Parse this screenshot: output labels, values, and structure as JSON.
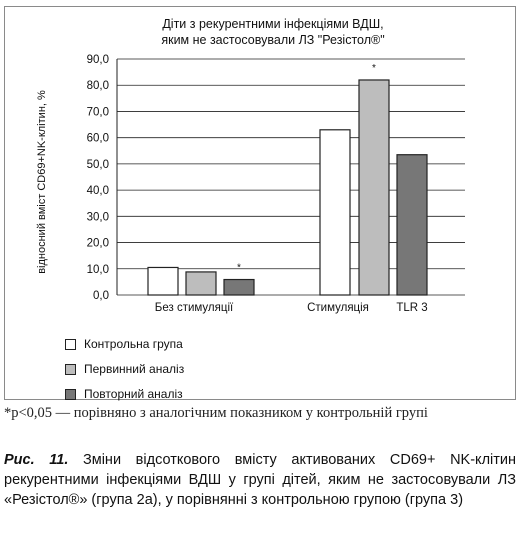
{
  "chart_data": {
    "type": "bar",
    "title_line1": "Діти з рекурентними інфекціями ВДШ,",
    "title_line2": "яким не застосовували ЛЗ \"Резістол®\"",
    "ylabel": "відносний вміст CD69+NK-клітин, %",
    "ylim": [
      0,
      90
    ],
    "yticks": [
      "0,0",
      "10,0",
      "20,0",
      "30,0",
      "40,0",
      "50,0",
      "60,0",
      "70,0",
      "80,0",
      "90,0"
    ],
    "grid": true,
    "categories": [
      "Без стимуляції",
      "Стимуляція",
      "TLR 3"
    ],
    "series": [
      {
        "name": "Контрольна група",
        "color": "#ffffff",
        "values": [
          10.5,
          63.0,
          null
        ]
      },
      {
        "name": "Первинний аналіз",
        "color": "#bdbdbd",
        "values": [
          8.8,
          82.0,
          null
        ]
      },
      {
        "name": "Повторний аналіз",
        "color": "#777777",
        "values": [
          5.9,
          null,
          53.5
        ]
      }
    ],
    "annotations": [
      {
        "text": "*",
        "category": "Без стимуляції",
        "series": "Повторний аналіз"
      },
      {
        "text": "*",
        "category": "Стимуляція",
        "series": "Первинний аналіз"
      }
    ],
    "legend_position": "bottom-left"
  },
  "footnote": "*p<0,05 — порівняно з аналогічним показником у контрольній групі",
  "caption": {
    "label": "Рис. 11.",
    "text": " Зміни відсоткового вмісту активованих CD69+ NK-клітин рекурентними інфекціями ВДШ у групі дітей, яким не застосовували ЛЗ «Резістол®» (група 2а), у порівнянні з контрольною групою (група 3)"
  }
}
